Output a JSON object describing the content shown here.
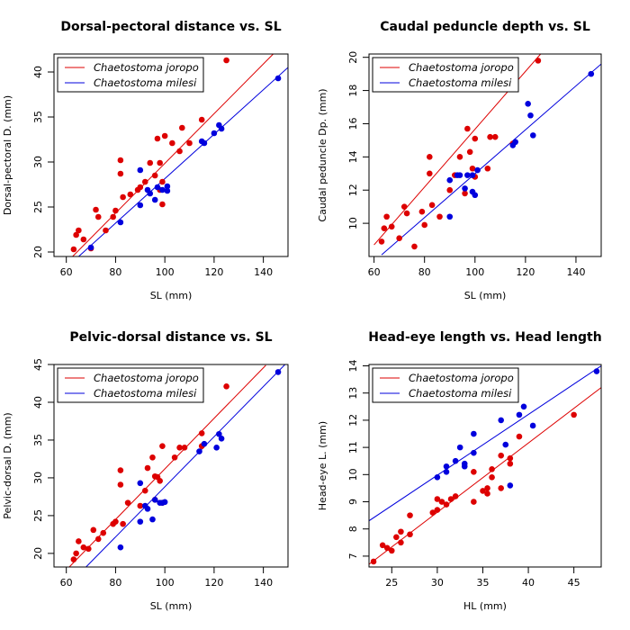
{
  "chart_data": [
    {
      "type": "scatter",
      "title": "Dorsal-pectoral distance vs. SL",
      "xlabel": "SL (mm)",
      "ylabel": "Dorsal-pectoral D. (mm)",
      "xlim": [
        55,
        150
      ],
      "ylim": [
        19.5,
        42
      ],
      "xticks": [
        60,
        80,
        100,
        120,
        140
      ],
      "yticks": [
        20,
        25,
        30,
        35,
        40
      ],
      "legend_position": "top-left",
      "series": [
        {
          "name": "Chaetostoma joropo",
          "color": "#dd0000",
          "points": [
            [
              63,
              20.3
            ],
            [
              64,
              21.9
            ],
            [
              65,
              22.4
            ],
            [
              67,
              21.4
            ],
            [
              70,
              20.4
            ],
            [
              72,
              24.7
            ],
            [
              73,
              23.9
            ],
            [
              76,
              22.4
            ],
            [
              79,
              23.9
            ],
            [
              80,
              24.6
            ],
            [
              82,
              28.7
            ],
            [
              82,
              30.2
            ],
            [
              83,
              26.1
            ],
            [
              86,
              26.4
            ],
            [
              89,
              26.9
            ],
            [
              90,
              27.2
            ],
            [
              92,
              27.8
            ],
            [
              94,
              29.9
            ],
            [
              96,
              28.5
            ],
            [
              97,
              32.6
            ],
            [
              98,
              29.9
            ],
            [
              98,
              26.9
            ],
            [
              99,
              25.3
            ],
            [
              99,
              27.8
            ],
            [
              100,
              32.9
            ],
            [
              103,
              32.1
            ],
            [
              106,
              31.2
            ],
            [
              107,
              33.8
            ],
            [
              110,
              32.1
            ],
            [
              115,
              34.7
            ],
            [
              125,
              41.3
            ]
          ],
          "fit": [
            [
              60,
              18.8
            ],
            [
              144,
              42
            ]
          ]
        },
        {
          "name": "Chaetostoma milesi",
          "color": "#0000dd",
          "points": [
            [
              70,
              20.5
            ],
            [
              82,
              23.3
            ],
            [
              90,
              29.1
            ],
            [
              90,
              25.2
            ],
            [
              93,
              26.9
            ],
            [
              94,
              26.5
            ],
            [
              96,
              25.8
            ],
            [
              97,
              27.2
            ],
            [
              99,
              26.9
            ],
            [
              101,
              27.3
            ],
            [
              101,
              26.8
            ],
            [
              115,
              32.3
            ],
            [
              116,
              32.1
            ],
            [
              120,
              33.2
            ],
            [
              122,
              34.1
            ],
            [
              123,
              33.7
            ],
            [
              146,
              39.3
            ]
          ],
          "fit": [
            [
              65,
              19.5
            ],
            [
              150,
              40.5
            ]
          ]
        }
      ]
    },
    {
      "type": "scatter",
      "title": "Caudal peduncle depth vs. SL",
      "xlabel": "SL (mm)",
      "ylabel": "Caudal peduncle Dp. (mm)",
      "xlim": [
        58,
        150
      ],
      "ylim": [
        8,
        20.2
      ],
      "xticks": [
        60,
        80,
        100,
        120,
        140
      ],
      "yticks": [
        10,
        12,
        14,
        16,
        18,
        20
      ],
      "legend_position": "top-left",
      "series": [
        {
          "name": "Chaetostoma joropo",
          "color": "#dd0000",
          "points": [
            [
              63,
              8.9
            ],
            [
              64,
              9.7
            ],
            [
              65,
              10.4
            ],
            [
              67,
              9.8
            ],
            [
              70,
              9.1
            ],
            [
              72,
              11.0
            ],
            [
              73,
              10.6
            ],
            [
              76,
              8.6
            ],
            [
              79,
              10.7
            ],
            [
              80,
              9.9
            ],
            [
              82,
              13.0
            ],
            [
              82,
              14.0
            ],
            [
              83,
              11.1
            ],
            [
              86,
              10.4
            ],
            [
              90,
              12.0
            ],
            [
              92,
              12.9
            ],
            [
              94,
              14.0
            ],
            [
              96,
              11.8
            ],
            [
              97,
              15.7
            ],
            [
              98,
              14.3
            ],
            [
              99,
              13.3
            ],
            [
              100,
              15.1
            ],
            [
              100,
              12.8
            ],
            [
              105,
              13.3
            ],
            [
              106,
              15.2
            ],
            [
              108,
              15.2
            ],
            [
              115,
              14.8
            ],
            [
              125,
              19.8
            ]
          ],
          "fit": [
            [
              60,
              8.7
            ],
            [
              126,
              20.2
            ]
          ]
        },
        {
          "name": "Chaetostoma milesi",
          "color": "#0000dd",
          "points": [
            [
              90,
              10.4
            ],
            [
              90,
              12.6
            ],
            [
              93,
              12.9
            ],
            [
              94,
              12.9
            ],
            [
              96,
              12.1
            ],
            [
              97,
              12.9
            ],
            [
              99,
              12.9
            ],
            [
              99,
              11.9
            ],
            [
              100,
              11.7
            ],
            [
              101,
              13.2
            ],
            [
              115,
              14.7
            ],
            [
              116,
              14.9
            ],
            [
              121,
              17.2
            ],
            [
              122,
              16.5
            ],
            [
              123,
              15.3
            ],
            [
              146,
              19.0
            ]
          ],
          "fit": [
            [
              63,
              8.1
            ],
            [
              150,
              19.6
            ]
          ]
        }
      ]
    },
    {
      "type": "scatter",
      "title": "Pelvic-dorsal distance vs. SL",
      "xlabel": "SL (mm)",
      "ylabel": "Pelvic-dorsal D. (mm)",
      "xlim": [
        55,
        150
      ],
      "ylim": [
        18.2,
        45
      ],
      "xticks": [
        60,
        80,
        100,
        120,
        140
      ],
      "yticks": [
        20,
        25,
        30,
        35,
        40,
        45
      ],
      "legend_position": "top-left",
      "series": [
        {
          "name": "Chaetostoma joropo",
          "color": "#dd0000",
          "points": [
            [
              63,
              19.2
            ],
            [
              64,
              20.0
            ],
            [
              65,
              21.6
            ],
            [
              67,
              20.8
            ],
            [
              69,
              20.6
            ],
            [
              71,
              23.1
            ],
            [
              73,
              21.9
            ],
            [
              75,
              22.7
            ],
            [
              79,
              23.9
            ],
            [
              80,
              24.2
            ],
            [
              82,
              29.1
            ],
            [
              82,
              31.0
            ],
            [
              83,
              23.9
            ],
            [
              85,
              26.7
            ],
            [
              90,
              26.3
            ],
            [
              92,
              28.3
            ],
            [
              93,
              31.3
            ],
            [
              95,
              32.7
            ],
            [
              96,
              30.2
            ],
            [
              96,
              27.1
            ],
            [
              97,
              30.1
            ],
            [
              98,
              29.6
            ],
            [
              99,
              34.2
            ],
            [
              99,
              26.7
            ],
            [
              104,
              32.7
            ],
            [
              106,
              34.0
            ],
            [
              108,
              34.0
            ],
            [
              115,
              35.9
            ],
            [
              115,
              34.2
            ],
            [
              125,
              42.1
            ]
          ],
          "fit": [
            [
              60,
              17.8
            ],
            [
              141,
              44.9
            ]
          ]
        },
        {
          "name": "Chaetostoma milesi",
          "color": "#0000dd",
          "points": [
            [
              82,
              20.8
            ],
            [
              90,
              24.2
            ],
            [
              90,
              29.3
            ],
            [
              92,
              26.3
            ],
            [
              93,
              25.9
            ],
            [
              95,
              24.5
            ],
            [
              96,
              27.1
            ],
            [
              98,
              26.7
            ],
            [
              99,
              26.7
            ],
            [
              100,
              26.8
            ],
            [
              114,
              33.5
            ],
            [
              116,
              34.5
            ],
            [
              121,
              34.0
            ],
            [
              122,
              35.8
            ],
            [
              123,
              35.2
            ],
            [
              146,
              44.0
            ]
          ],
          "fit": [
            [
              68,
              18.2
            ],
            [
              150,
              45.4
            ]
          ]
        }
      ]
    },
    {
      "type": "scatter",
      "title": "Head-eye length vs. Head length",
      "xlabel": "HL (mm)",
      "ylabel": "Head-eye L. (mm)",
      "xlim": [
        22.5,
        48
      ],
      "ylim": [
        6.6,
        14.05
      ],
      "xticks": [
        25,
        30,
        35,
        40,
        45
      ],
      "yticks": [
        7,
        8,
        9,
        10,
        11,
        12,
        13,
        14
      ],
      "legend_position": "top-left",
      "series": [
        {
          "name": "Chaetostoma joropo",
          "color": "#dd0000",
          "points": [
            [
              23,
              6.8
            ],
            [
              24,
              7.4
            ],
            [
              24.5,
              7.3
            ],
            [
              25,
              7.2
            ],
            [
              25.5,
              7.7
            ],
            [
              26,
              7.5
            ],
            [
              26,
              7.9
            ],
            [
              27,
              7.8
            ],
            [
              27,
              8.5
            ],
            [
              29.5,
              8.6
            ],
            [
              30,
              9.1
            ],
            [
              30,
              8.7
            ],
            [
              30.5,
              9.0
            ],
            [
              31,
              8.9
            ],
            [
              31.5,
              9.1
            ],
            [
              32,
              9.2
            ],
            [
              34,
              9.0
            ],
            [
              34,
              10.1
            ],
            [
              35,
              9.4
            ],
            [
              35.5,
              9.3
            ],
            [
              35.5,
              9.5
            ],
            [
              36,
              10.2
            ],
            [
              36,
              9.9
            ],
            [
              37,
              9.5
            ],
            [
              37,
              10.7
            ],
            [
              38,
              10.6
            ],
            [
              38,
              10.4
            ],
            [
              39,
              11.4
            ],
            [
              45,
              12.2
            ]
          ],
          "fit": [
            [
              22.5,
              6.7
            ],
            [
              48,
              13.2
            ]
          ]
        },
        {
          "name": "Chaetostoma milesi",
          "color": "#0000dd",
          "points": [
            [
              30,
              9.9
            ],
            [
              31,
              10.1
            ],
            [
              31,
              10.3
            ],
            [
              32,
              10.5
            ],
            [
              32.5,
              11.0
            ],
            [
              33,
              10.4
            ],
            [
              33,
              10.3
            ],
            [
              34,
              11.5
            ],
            [
              34,
              10.8
            ],
            [
              37,
              12.0
            ],
            [
              37.5,
              11.1
            ],
            [
              38,
              9.6
            ],
            [
              39,
              12.2
            ],
            [
              39.5,
              12.5
            ],
            [
              40.5,
              11.8
            ],
            [
              47.5,
              13.8
            ]
          ],
          "fit": [
            [
              22.5,
              8.3
            ],
            [
              48,
              14.0
            ]
          ]
        }
      ]
    }
  ]
}
